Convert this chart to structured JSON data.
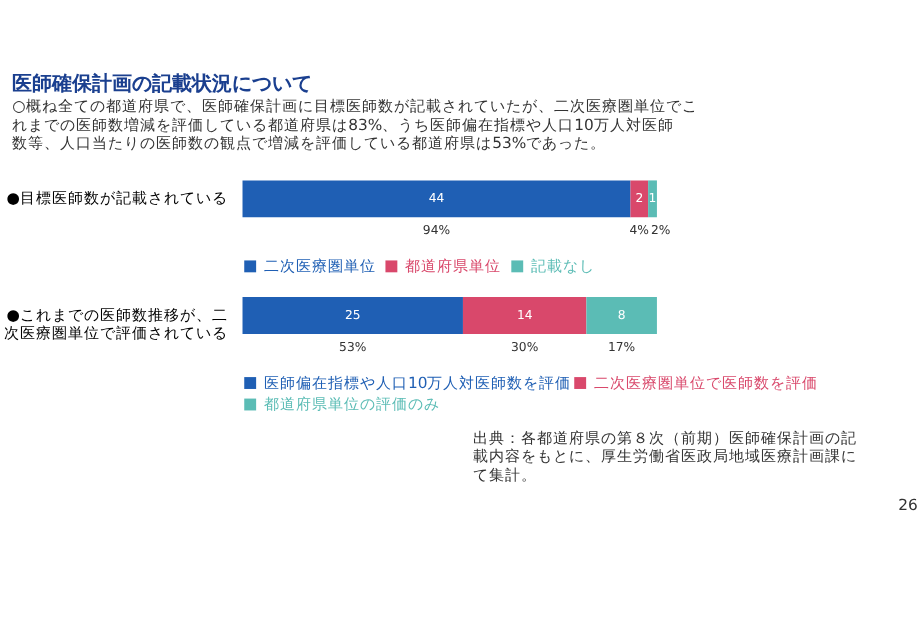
{
  "chart_data": [
    {
      "type": "bar",
      "orientation": "horizontal",
      "stacked": true,
      "data_labels": true,
      "legend": "bottom",
      "title": "医師確保計画の記載状況について",
      "subtitle": "○概ね全ての都道府県で、医師確保計画に目標医師数が記載されていたが、二次医療圏単位でこれまでの医師数増減を評価している都道府県は83%、うち医師偏在指標や人口10万人対医師数等、人口当たりの医師数の観点で増減を評価している都道府県は53%であった。",
      "categories": [
        "●目標医師数が記載されている"
      ],
      "series": [
        {
          "name": "二次医療圏単位",
          "color": "#1f5fb4",
          "values": [
            44
          ]
        },
        {
          "name": "都道府県単位",
          "color": "#d9486b",
          "values": [
            2
          ]
        },
        {
          "name": "記載なし",
          "color": "#5bbcb5",
          "values": [
            1
          ]
        }
      ],
      "annotations": [
        "94%",
        "4%",
        "2%"
      ]
    },
    {
      "type": "bar",
      "orientation": "horizontal",
      "stacked": true,
      "data_labels": true,
      "legend": "bottom",
      "categories": [
        "●これまでの医師数推移が、二次医療圏単位で評価されている"
      ],
      "series": [
        {
          "name": "医師偏在指標や人口10万人対医師数を評価",
          "color": "#1f5fb4",
          "values": [
            25
          ]
        },
        {
          "name": "二次医療圏単位で医師数を評価",
          "color": "#d9486b",
          "values": [
            14
          ]
        },
        {
          "name": "都道府県単位の評価のみ",
          "color": "#5bbcb5",
          "values": [
            8
          ]
        }
      ],
      "annotations": [
        "53%",
        "30%",
        "17%",
        "出典：各都道府県の第８次（前期）医師確保計画の記載内容をもとに、厚生労働省医政局地域医療計画課にて集計。",
        "26"
      ]
    }
  ]
}
